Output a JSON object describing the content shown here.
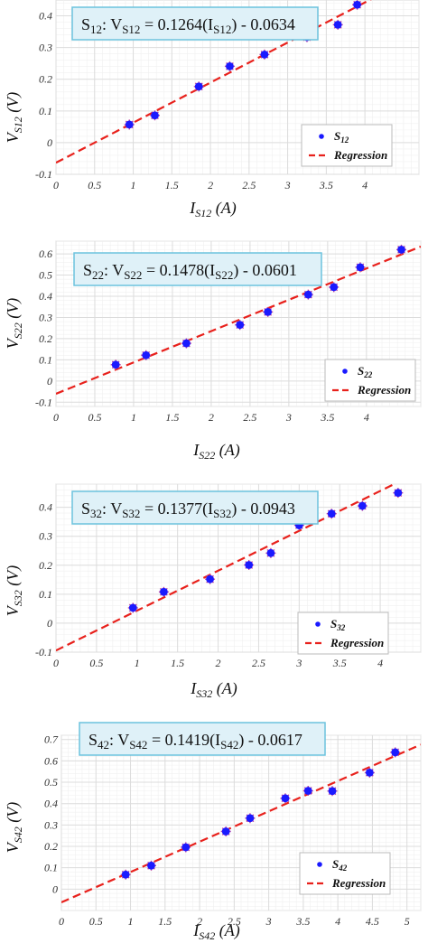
{
  "chart_data": [
    {
      "type": "scatter",
      "equation": {
        "label": "S",
        "sub_label": "12",
        "lhs": "V",
        "lhs_sub": "S12",
        "coef": "0.1264",
        "var": "I",
        "var_sub": "S12",
        "intercept": "- 0.0634"
      },
      "xlabel": {
        "main": "I",
        "sub": "S12",
        "unit": "(A)"
      },
      "ylabel": {
        "main": "V",
        "sub": "S12",
        "unit": "(V)"
      },
      "xlim": [
        0,
        4.7
      ],
      "ylim": [
        -0.1,
        0.45
      ],
      "xticks": [
        "0",
        "0.5",
        "1",
        "1.5",
        "2",
        "2.5",
        "3",
        "3.5",
        "4"
      ],
      "yticks": [
        "-0.1",
        "0",
        "0.1",
        "0.2",
        "0.3",
        "0.4"
      ],
      "x": [
        0.95,
        1.28,
        1.85,
        2.25,
        2.7,
        3.25,
        3.65,
        3.9
      ],
      "y": [
        0.057,
        0.086,
        0.177,
        0.241,
        0.278,
        0.333,
        0.372,
        0.435
      ],
      "regression": {
        "slope": 0.1264,
        "intercept": -0.0634
      },
      "legend": {
        "series": "S",
        "series_sub": "12",
        "regression": "Regression",
        "placement": "bottom-right"
      },
      "grid": true
    },
    {
      "type": "scatter",
      "equation": {
        "label": "S",
        "sub_label": "22",
        "lhs": "V",
        "lhs_sub": "S22",
        "coef": "0.1478",
        "var": "I",
        "var_sub": "S22",
        "intercept": "- 0.0601"
      },
      "xlabel": {
        "main": "I",
        "sub": "S22",
        "unit": "(A)"
      },
      "ylabel": {
        "main": "V",
        "sub": "S22",
        "unit": "(V)"
      },
      "xlim": [
        0,
        4.7
      ],
      "ylim": [
        -0.12,
        0.66
      ],
      "xticks": [
        "0",
        "0.5",
        "1",
        "1.5",
        "2",
        "2.5",
        "3",
        "3.5",
        "4"
      ],
      "yticks": [
        "-0.1",
        "0",
        "0.1",
        "0.2",
        "0.3",
        "0.4",
        "0.5",
        "0.6"
      ],
      "x": [
        0.77,
        1.16,
        1.68,
        2.37,
        2.73,
        3.25,
        3.58,
        3.92,
        4.45
      ],
      "y": [
        0.077,
        0.122,
        0.178,
        0.265,
        0.326,
        0.408,
        0.443,
        0.537,
        0.62
      ],
      "regression": {
        "slope": 0.1478,
        "intercept": -0.0601
      },
      "legend": {
        "series": "S",
        "series_sub": "22",
        "regression": "Regression",
        "placement": "bottom-right"
      },
      "grid": true
    },
    {
      "type": "scatter",
      "equation": {
        "label": "S",
        "sub_label": "32",
        "lhs": "V",
        "lhs_sub": "S32",
        "coef": "0.1377",
        "var": "I",
        "var_sub": "S32",
        "intercept": "- 0.0943"
      },
      "xlabel": {
        "main": "I",
        "sub": "S32",
        "unit": "(A)"
      },
      "ylabel": {
        "main": "V",
        "sub": "S32",
        "unit": "(V)"
      },
      "xlim": [
        0,
        4.5
      ],
      "ylim": [
        -0.1,
        0.48
      ],
      "xticks": [
        "0",
        "0.5",
        "1",
        "1.5",
        "2",
        "2.5",
        "3",
        "3.5",
        "4"
      ],
      "yticks": [
        "-0.1",
        "0",
        "0.1",
        "0.2",
        "0.3",
        "0.4"
      ],
      "x": [
        0.95,
        1.33,
        1.9,
        2.38,
        2.65,
        3.0,
        3.4,
        3.78,
        4.22
      ],
      "y": [
        0.053,
        0.108,
        0.152,
        0.201,
        0.242,
        0.338,
        0.378,
        0.405,
        0.45
      ],
      "regression": {
        "slope": 0.1377,
        "intercept": -0.0943
      },
      "legend": {
        "series": "S",
        "series_sub": "32",
        "regression": "Regression",
        "placement": "bottom-right"
      },
      "grid": true
    },
    {
      "type": "scatter",
      "equation": {
        "label": "S",
        "sub_label": "42",
        "lhs": "V",
        "lhs_sub": "S42",
        "coef": "0.1419",
        "var": "I",
        "var_sub": "S42",
        "intercept": "- 0.0617"
      },
      "xlabel": {
        "main": "I",
        "sub": "S42",
        "unit": "(A)"
      },
      "ylabel": {
        "main": "V",
        "sub": "S42",
        "unit": "(V)"
      },
      "xlim": [
        0,
        5.2
      ],
      "ylim": [
        -0.1,
        0.72
      ],
      "xticks": [
        "0",
        "0.5",
        "1",
        "1.5",
        "2",
        "2.5",
        "3",
        "3.5",
        "4",
        "4.5",
        "5"
      ],
      "yticks": [
        "0",
        "0.1",
        "0.2",
        "0.3",
        "0.4",
        "0.5",
        "0.6",
        "0.7"
      ],
      "x": [
        0.93,
        1.3,
        1.8,
        2.38,
        2.73,
        3.24,
        3.57,
        3.92,
        4.46,
        4.83
      ],
      "y": [
        0.068,
        0.11,
        0.196,
        0.27,
        0.332,
        0.425,
        0.46,
        0.459,
        0.545,
        0.64
      ],
      "regression": {
        "slope": 0.1419,
        "intercept": -0.0617
      },
      "legend": {
        "series": "S",
        "series_sub": "42",
        "regression": "Regression",
        "placement": "bottom-right"
      },
      "grid": true
    }
  ]
}
